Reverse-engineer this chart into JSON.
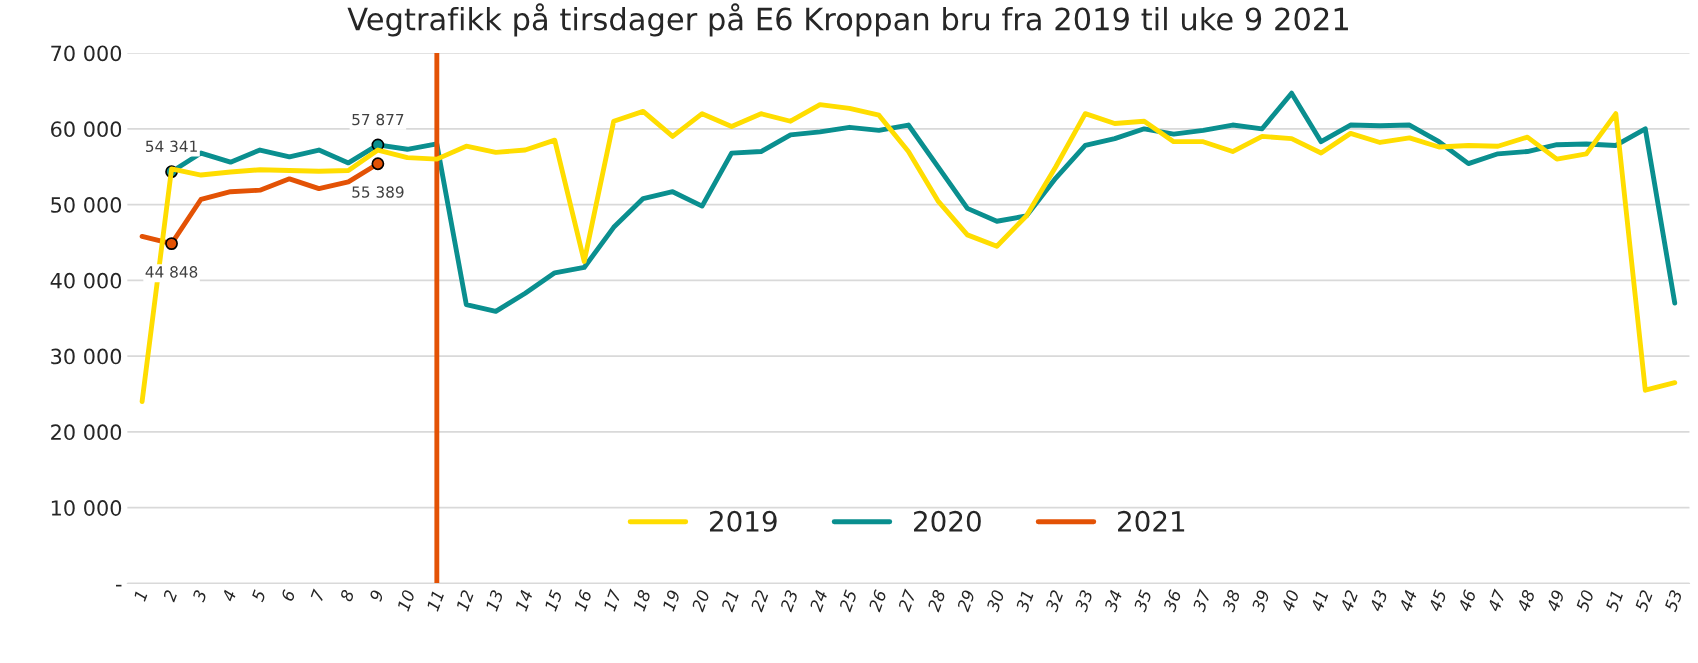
{
  "chart_data": {
    "type": "line",
    "title": "Vegtrafikk på tirsdager på E6 Kroppan bru fra 2019 til uke 9 2021",
    "categories": [
      "1",
      "2",
      "3",
      "4",
      "5",
      "6",
      "7",
      "8",
      "9",
      "10",
      "11",
      "12",
      "13",
      "14",
      "15",
      "16",
      "17",
      "18",
      "19",
      "20",
      "21",
      "22",
      "23",
      "24",
      "25",
      "26",
      "27",
      "28",
      "29",
      "30",
      "31",
      "32",
      "33",
      "34",
      "35",
      "36",
      "37",
      "38",
      "39",
      "40",
      "41",
      "42",
      "43",
      "44",
      "45",
      "46",
      "47",
      "48",
      "49",
      "50",
      "51",
      "52",
      "53"
    ],
    "series": [
      {
        "name": "2019",
        "color": "#ffdd00",
        "values": [
          24000,
          54700,
          53900,
          54300,
          54600,
          54500,
          54400,
          54500,
          57200,
          56200,
          56000,
          57700,
          56900,
          57200,
          58500,
          42500,
          61000,
          62300,
          59000,
          62000,
          60300,
          62000,
          61000,
          63200,
          62700,
          61800,
          57000,
          50500,
          46000,
          44500,
          48500,
          55000,
          62000,
          60700,
          61000,
          58300,
          58300,
          57000,
          59000,
          58700,
          56800,
          59400,
          58200,
          58800,
          57600,
          57800,
          57700,
          58900,
          56000,
          56700,
          62000,
          25500,
          26500
        ]
      },
      {
        "name": "2020",
        "color": "#0a8f8f",
        "values": [
          null,
          54341,
          56800,
          55600,
          57200,
          56300,
          57200,
          55500,
          57877,
          57300,
          58000,
          36800,
          35900,
          38300,
          41000,
          41700,
          47000,
          50800,
          51700,
          49800,
          56800,
          57000,
          59200,
          59600,
          60200,
          59800,
          60500,
          55000,
          49500,
          47800,
          48500,
          53500,
          57800,
          58700,
          60000,
          59300,
          59800,
          60500,
          60000,
          64700,
          58300,
          60500,
          60400,
          60500,
          58300,
          55400,
          56700,
          57000,
          57900,
          58000,
          57800,
          60000,
          37000
        ],
        "value_labels": [
          null,
          "54 341",
          null,
          null,
          null,
          null,
          null,
          null,
          "57 877",
          null,
          null,
          null,
          null,
          null,
          null,
          null,
          null,
          null,
          null,
          null,
          null,
          null,
          null,
          null,
          null,
          null,
          null,
          null,
          null,
          null,
          null,
          null,
          null,
          null,
          null,
          null,
          null,
          null,
          null,
          null,
          null,
          null,
          null,
          null,
          null,
          null,
          null,
          null,
          null,
          null,
          null,
          null,
          null
        ]
      },
      {
        "name": "2021",
        "color": "#e35205",
        "values": [
          45800,
          44848,
          50700,
          51700,
          51900,
          53400,
          52100,
          53000,
          55389,
          null,
          null,
          null,
          null,
          null,
          null,
          null,
          null,
          null,
          null,
          null,
          null,
          null,
          null,
          null,
          null,
          null,
          null,
          null,
          null,
          null,
          null,
          null,
          null,
          null,
          null,
          null,
          null,
          null,
          null,
          null,
          null,
          null,
          null,
          null,
          null,
          null,
          null,
          null,
          null,
          null,
          null,
          null,
          null
        ],
        "value_labels": [
          null,
          "44 848",
          null,
          null,
          null,
          null,
          null,
          null,
          "55 389",
          null,
          null,
          null,
          null,
          null,
          null,
          null,
          null,
          null,
          null,
          null,
          null,
          null,
          null,
          null,
          null,
          null,
          null,
          null,
          null,
          null,
          null,
          null,
          null,
          null,
          null,
          null,
          null,
          null,
          null,
          null,
          null,
          null,
          null,
          null,
          null,
          null,
          null,
          null,
          null,
          null,
          null,
          null,
          null
        ]
      }
    ],
    "ref_lines": [
      {
        "axis": "x",
        "value": "11",
        "color": "#e35205"
      }
    ],
    "ylim": [
      0,
      70000
    ],
    "yticks": [
      {
        "value": 0,
        "label": "-"
      },
      {
        "value": 10000,
        "label": "10 000"
      },
      {
        "value": 20000,
        "label": "20 000"
      },
      {
        "value": 30000,
        "label": "30 000"
      },
      {
        "value": 40000,
        "label": "40 000"
      },
      {
        "value": 50000,
        "label": "50 000"
      },
      {
        "value": 60000,
        "label": "60 000"
      },
      {
        "value": 70000,
        "label": "70 000"
      }
    ],
    "grid": "y",
    "legend": "bottom",
    "line_style": "solid"
  }
}
